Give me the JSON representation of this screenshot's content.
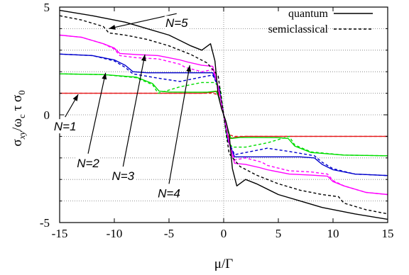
{
  "chart_data": {
    "type": "line",
    "xlabel": "μ/Γ",
    "ylabel": "σ_xy/ω_c τ σ_0",
    "xlim": [
      -15,
      15
    ],
    "ylim": [
      -5,
      5
    ],
    "xticks": [
      "-15",
      "-10",
      "-5",
      "0",
      "5",
      "10",
      "15"
    ],
    "yticks": [
      "-5",
      "0",
      "5"
    ],
    "x_tick_values": [
      -15,
      -10,
      -5,
      0,
      5,
      10,
      15
    ],
    "y_tick_values": [
      -5,
      0,
      5
    ],
    "y_minor_ticks": [
      -4,
      -3,
      -2,
      -1,
      1,
      2,
      3,
      4
    ],
    "grid": "horizontal dotted lines at integers, vertical dotted line at x=0",
    "legend": {
      "placement": "top-right",
      "entries": [
        {
          "label": "quantum",
          "dash": "solid"
        },
        {
          "label": "semiclassical",
          "dash": "dashed"
        }
      ]
    },
    "series": [
      {
        "N": 1,
        "color": "#e41a1c",
        "kind": "quantum",
        "x": [
          -15,
          -2,
          -1,
          -0.6,
          -0.3,
          0,
          0.3,
          0.6,
          1,
          2,
          15
        ],
        "y": [
          1,
          1,
          1.05,
          1.1,
          0.9,
          0,
          -0.9,
          -1.1,
          -1.05,
          -1,
          -1
        ]
      },
      {
        "N": 1,
        "color": "#e41a1c",
        "kind": "semiclassical",
        "x": [
          -15,
          -2,
          -1,
          -0.3,
          0,
          0.3,
          1,
          2,
          15
        ],
        "y": [
          1,
          1,
          1,
          0.9,
          0,
          -0.9,
          -1,
          -1,
          -1
        ]
      },
      {
        "N": 2,
        "color": "#00dd00",
        "kind": "quantum",
        "x": [
          -15,
          -11,
          -8,
          -6.5,
          -5.9,
          -5,
          -3,
          -1.5,
          -0.7,
          -0.2,
          0,
          0.2,
          0.7,
          1.5,
          3,
          5,
          5.9,
          6.5,
          8,
          11,
          15
        ],
        "y": [
          1.9,
          1.87,
          1.75,
          1.45,
          1.1,
          1.06,
          1.05,
          1.05,
          1.1,
          0.6,
          0,
          -0.6,
          -1.1,
          -1.05,
          -1.05,
          -1.06,
          -1.1,
          -1.45,
          -1.75,
          -1.87,
          -1.9
        ]
      },
      {
        "N": 2,
        "color": "#00dd00",
        "kind": "semiclassical",
        "x": [
          -15,
          -11,
          -8,
          -6.5,
          -6,
          -4,
          -2,
          -0.8,
          -0.3,
          0,
          0.3,
          0.8,
          2,
          4,
          6,
          6.5,
          8,
          11,
          15
        ],
        "y": [
          1.9,
          1.87,
          1.72,
          1.4,
          1.0,
          1.3,
          1.5,
          1.5,
          1.2,
          0,
          -1.2,
          -1.5,
          -1.5,
          -1.3,
          -1.0,
          -1.4,
          -1.72,
          -1.87,
          -1.9
        ]
      },
      {
        "N": 3,
        "color": "#0000cc",
        "kind": "quantum",
        "x": [
          -15,
          -12,
          -10,
          -9,
          -8.3,
          -7,
          -4,
          -2,
          -1,
          -0.4,
          0,
          0.4,
          1,
          2,
          4,
          7,
          8.3,
          9,
          10,
          12,
          15
        ],
        "y": [
          2.82,
          2.75,
          2.55,
          2.3,
          2.0,
          1.95,
          1.95,
          1.95,
          1.95,
          1.2,
          0,
          -1.2,
          -1.95,
          -1.95,
          -1.95,
          -1.95,
          -2.0,
          -2.3,
          -2.55,
          -2.75,
          -2.82
        ]
      },
      {
        "N": 3,
        "color": "#0000cc",
        "kind": "semiclassical",
        "x": [
          -15,
          -12,
          -10,
          -9,
          -8.3,
          -6,
          -4,
          -2,
          -1,
          -0.4,
          0,
          0.4,
          1,
          2,
          4,
          6,
          8.3,
          9,
          10,
          12,
          15
        ],
        "y": [
          2.82,
          2.75,
          2.5,
          2.2,
          1.9,
          1.7,
          1.55,
          1.75,
          1.85,
          1.2,
          0,
          -1.2,
          -1.85,
          -1.75,
          -1.55,
          -1.7,
          -1.9,
          -2.2,
          -2.5,
          -2.75,
          -2.82
        ]
      },
      {
        "N": 4,
        "color": "#ff00ff",
        "kind": "quantum",
        "x": [
          -15,
          -13,
          -11,
          -10,
          -9.5,
          -8,
          -6,
          -4,
          -3.3,
          -2,
          -1,
          -0.5,
          0,
          0.5,
          1,
          2,
          3.3,
          4,
          6,
          8,
          9.5,
          10,
          11,
          13,
          15
        ],
        "y": [
          3.7,
          3.6,
          3.3,
          3.1,
          2.85,
          2.8,
          2.75,
          2.55,
          2.45,
          2.3,
          2.25,
          1.3,
          0,
          -1.3,
          -2.25,
          -2.3,
          -2.45,
          -2.55,
          -2.75,
          -2.8,
          -2.85,
          -3.1,
          -3.3,
          -3.6,
          -3.7
        ]
      },
      {
        "N": 4,
        "color": "#ff00ff",
        "kind": "semiclassical",
        "x": [
          -15,
          -13,
          -11,
          -10,
          -9.5,
          -8,
          -6,
          -4,
          -3.5,
          -2,
          -1,
          -0.5,
          0,
          0.5,
          1,
          2,
          3.5,
          4,
          6,
          8,
          9.5,
          10,
          11,
          13,
          15
        ],
        "y": [
          3.7,
          3.6,
          3.3,
          3.05,
          2.75,
          2.65,
          2.6,
          2.35,
          2.2,
          2.0,
          2.1,
          1.3,
          0,
          -1.3,
          -2.1,
          -2.0,
          -2.2,
          -2.35,
          -2.6,
          -2.65,
          -2.75,
          -3.05,
          -3.3,
          -3.6,
          -3.7
        ]
      },
      {
        "N": 5,
        "color": "#000000",
        "kind": "quantum",
        "x": [
          -15,
          -12,
          -9,
          -7,
          -5,
          -3,
          -2,
          -1.2,
          -0.8,
          -0.5,
          -0.2,
          0,
          0.2,
          0.5,
          0.8,
          1.2,
          2,
          3,
          5,
          7,
          9,
          12,
          15
        ],
        "y": [
          4.85,
          4.6,
          4.3,
          4.0,
          3.7,
          3.2,
          3.0,
          3.3,
          2.5,
          0.9,
          0.3,
          0,
          -0.3,
          -0.9,
          -2.5,
          -3.3,
          -3.0,
          -3.2,
          -3.7,
          -4.0,
          -4.3,
          -4.6,
          -4.85
        ]
      },
      {
        "N": 5,
        "color": "#000000",
        "kind": "semiclassical",
        "x": [
          -15,
          -13,
          -11,
          -10.5,
          -9,
          -7,
          -5,
          -3,
          -1.5,
          -0.5,
          0,
          0.5,
          1.5,
          3,
          5,
          7,
          9,
          10.5,
          11,
          13,
          15
        ],
        "y": [
          4.6,
          4.4,
          4.1,
          3.8,
          3.7,
          3.5,
          3.2,
          2.8,
          2.4,
          1.8,
          0,
          -1.8,
          -2.4,
          -2.8,
          -3.2,
          -3.5,
          -3.7,
          -3.8,
          -4.1,
          -4.4,
          -4.6
        ]
      }
    ],
    "annotations": [
      {
        "label": "N=5",
        "text_at": [
          -4.3,
          4.5
        ],
        "arrow_to": [
          -10.5,
          4.0
        ]
      },
      {
        "label": "N=1",
        "text_at": [
          -14.5,
          -0.3
        ],
        "arrow_to": [
          -13.3,
          0.95
        ]
      },
      {
        "label": "N=2",
        "text_at": [
          -12.4,
          -2.0
        ],
        "arrow_to": [
          -10.8,
          1.95
        ]
      },
      {
        "label": "N=3",
        "text_at": [
          -9.2,
          -2.6
        ],
        "arrow_to": [
          -7.2,
          2.8
        ]
      },
      {
        "label": "N=4",
        "text_at": [
          -5.0,
          -3.4
        ],
        "arrow_to": [
          -3.1,
          2.3
        ]
      }
    ]
  }
}
